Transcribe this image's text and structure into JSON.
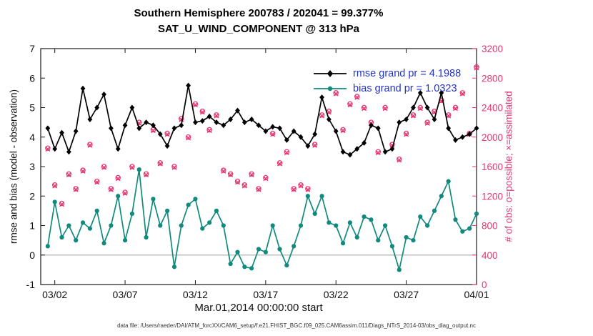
{
  "chart_data": {
    "type": "line",
    "title": "Southern Hemisphere 200783 / 202041 = 99.377%",
    "subtitle": "SAT_U_WIND_COMPONENT @ 313 hPa",
    "xlabel": "Mar.01,2014 00:00:00 start",
    "ylabel_left": "rmse and bias (model - observation)",
    "ylabel_right": "# of obs: o=possible; ×=assimilated",
    "xlim": [
      0,
      31
    ],
    "ylim_left": [
      -1,
      7
    ],
    "ylim_right": [
      0,
      3200
    ],
    "xtick_values": [
      1,
      6,
      11,
      16,
      21,
      26,
      31
    ],
    "xtick_labels": [
      "03/02",
      "03/07",
      "03/12",
      "03/17",
      "03/22",
      "03/27",
      "04/01"
    ],
    "ytick_left": [
      -1,
      0,
      1,
      2,
      3,
      4,
      5,
      6,
      7
    ],
    "ytick_right": [
      0,
      400,
      800,
      1200,
      1600,
      2000,
      2400,
      2800,
      3200
    ],
    "grid": "off",
    "legend_position": "upper-right-inside",
    "colors": {
      "rmse": "#000000",
      "bias": "#118a7e",
      "obs": "#e8356d",
      "legend_text": "#2233cc",
      "zero_line": "#bdbdbd",
      "axis": "#1a1a1a"
    },
    "x": [
      0.5,
      1,
      1.5,
      2,
      2.5,
      3,
      3.5,
      4,
      4.5,
      5,
      5.5,
      6,
      6.5,
      7,
      7.5,
      8,
      8.5,
      9,
      9.5,
      10,
      10.5,
      11,
      11.5,
      12,
      12.5,
      13,
      13.5,
      14,
      14.5,
      15,
      15.5,
      16,
      16.5,
      17,
      17.5,
      18,
      18.5,
      19,
      19.5,
      20,
      20.5,
      21,
      21.5,
      22,
      22.5,
      23,
      23.5,
      24,
      24.5,
      25,
      25.5,
      26,
      26.5,
      27,
      27.5,
      28,
      28.5,
      29,
      29.5,
      30,
      30.5,
      31
    ],
    "series": [
      {
        "id": "rmse",
        "name": "rmse grand pr = 4.1988",
        "grand_pr": 4.1988,
        "color_key": "rmse",
        "marker": "diamond",
        "line": true,
        "axis": "left",
        "y": [
          4.3,
          3.6,
          4.15,
          3.5,
          4.2,
          5.65,
          4.6,
          5.0,
          5.45,
          4.3,
          3.6,
          4.4,
          5.0,
          4.3,
          4.5,
          4.4,
          4.1,
          3.7,
          4.3,
          4.4,
          5.75,
          4.5,
          4.55,
          4.7,
          4.5,
          4.4,
          4.6,
          4.9,
          4.5,
          4.6,
          4.4,
          4.2,
          4.35,
          4.3,
          3.9,
          4.2,
          4.0,
          3.7,
          4.1,
          5.35,
          4.6,
          4.2,
          3.5,
          3.4,
          3.6,
          3.8,
          4.4,
          4.3,
          3.5,
          3.6,
          4.5,
          4.6,
          5.0,
          5.5,
          5.0,
          4.6,
          5.5,
          4.3,
          3.9,
          4.0,
          4.1,
          4.3
        ]
      },
      {
        "id": "bias",
        "name": "bias grand pr = 1.0323",
        "grand_pr": 1.0323,
        "color_key": "bias",
        "marker": "dot",
        "line": true,
        "axis": "left",
        "y": [
          0.3,
          1.8,
          0.6,
          1.0,
          0.5,
          1.1,
          0.9,
          1.5,
          0.4,
          1.0,
          2.0,
          0.5,
          1.4,
          2.9,
          0.6,
          1.9,
          1.0,
          1.5,
          -0.4,
          1.0,
          1.7,
          1.9,
          0.9,
          1.1,
          1.5,
          1.0,
          -0.3,
          0.1,
          -0.4,
          -0.45,
          0.2,
          0.1,
          1.0,
          0.2,
          -0.35,
          0.3,
          1.0,
          2.0,
          1.4,
          2.0,
          1.1,
          1.0,
          0.4,
          1.1,
          0.6,
          1.3,
          1.2,
          0.5,
          1.0,
          0.3,
          -0.5,
          0.6,
          0.5,
          1.3,
          1.0,
          1.5,
          2.0,
          2.5,
          1.2,
          0.8,
          0.9,
          1.4
        ]
      },
      {
        "id": "possible-obs",
        "name": "possible",
        "color_key": "obs",
        "marker": "circle",
        "line": false,
        "axis": "right",
        "y": [
          1850,
          1350,
          1100,
          1500,
          1300,
          1550,
          1900,
          1400,
          1600,
          1300,
          1450,
          1250,
          1600,
          2200,
          1500,
          2100,
          1650,
          2050,
          1600,
          2250,
          2000,
          2450,
          2350,
          2100,
          2300,
          1550,
          1500,
          1400,
          1350,
          1500,
          1300,
          1450,
          2050,
          1650,
          1800,
          1300,
          1350,
          1300,
          1900,
          2300,
          2350,
          2600,
          2100,
          2450,
          2550,
          2400,
          2200,
          1800,
          2400,
          1900,
          1700,
          2050,
          2300,
          2400,
          2200,
          2350,
          2500,
          2300,
          2400,
          2600,
          2050,
          2950
        ]
      },
      {
        "id": "assimilated-obs",
        "name": "assimilated",
        "color_key": "obs",
        "marker": "cross",
        "line": false,
        "axis": "right",
        "y": [
          1838,
          1338,
          1088,
          1488,
          1288,
          1538,
          1888,
          1388,
          1588,
          1288,
          1438,
          1238,
          1588,
          2188,
          1488,
          2088,
          1638,
          2038,
          1588,
          2238,
          1988,
          2438,
          2338,
          2088,
          2288,
          1538,
          1488,
          1388,
          1338,
          1488,
          1288,
          1438,
          2038,
          1638,
          1788,
          1288,
          1338,
          1288,
          1888,
          2288,
          2338,
          2588,
          2088,
          2438,
          2538,
          2388,
          2188,
          1788,
          2388,
          1888,
          1688,
          2038,
          2288,
          2388,
          2188,
          2338,
          2488,
          2288,
          2388,
          2588,
          2038,
          2938
        ]
      }
    ]
  },
  "footer": {
    "text": "data file: /Users/raeder/DAI/ATM_forcXX/CAM6_setup/f.e21.FHIST_BGC.f09_025.CAM6assim.011/Diags_NTrS_2014-03/obs_diag_output.nc"
  }
}
